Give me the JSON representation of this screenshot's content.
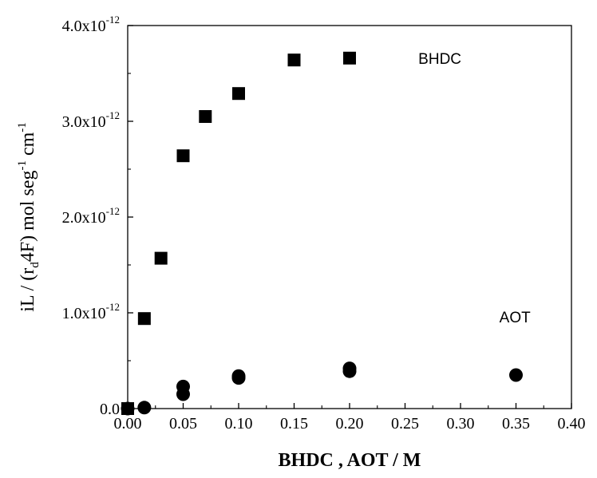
{
  "chart_data": {
    "type": "scatter",
    "title": "",
    "xlabel": "BHDC , AOT / M",
    "ylabel": {
      "prefix": "iL / (r",
      "sub1": "d",
      "middle": "4F)  mol seg",
      "sup1": "-1",
      "middle2": " cm",
      "sup2": "-1"
    },
    "xlim": [
      0.0,
      0.4
    ],
    "ylim": [
      0.0,
      4e-12
    ],
    "x_ticks": [
      0.0,
      0.05,
      0.1,
      0.15,
      0.2,
      0.25,
      0.3,
      0.35,
      0.4
    ],
    "x_tick_labels": [
      "0.00",
      "0.05",
      "0.10",
      "0.15",
      "0.20",
      "0.25",
      "0.30",
      "0.35",
      "0.40"
    ],
    "y_ticks": [
      0.0,
      1e-12,
      2e-12,
      3e-12,
      4e-12
    ],
    "y_tick_labels": [
      {
        "base": "0.0",
        "exp": ""
      },
      {
        "base": "1.0x10",
        "exp": "-12"
      },
      {
        "base": "2.0x10",
        "exp": "-12"
      },
      {
        "base": "3.0x10",
        "exp": "-12"
      },
      {
        "base": "4.0x10",
        "exp": "-12"
      }
    ],
    "grid": false,
    "series": [
      {
        "name": "BHDC",
        "marker": "square",
        "color": "#000000",
        "points": [
          {
            "x": 0.0,
            "y": 0.0
          },
          {
            "x": 0.015,
            "y": 9.4e-13
          },
          {
            "x": 0.03,
            "y": 1.57e-12
          },
          {
            "x": 0.05,
            "y": 2.64e-12
          },
          {
            "x": 0.07,
            "y": 3.05e-12
          },
          {
            "x": 0.1,
            "y": 3.29e-12
          },
          {
            "x": 0.15,
            "y": 3.64e-12
          },
          {
            "x": 0.2,
            "y": 3.66e-12
          }
        ]
      },
      {
        "name": "AOT",
        "marker": "circle",
        "color": "#000000",
        "points": [
          {
            "x": 0.0,
            "y": 0.0
          },
          {
            "x": 0.015,
            "y": 1e-14
          },
          {
            "x": 0.05,
            "y": 1.5e-13
          },
          {
            "x": 0.05,
            "y": 2.3e-13
          },
          {
            "x": 0.1,
            "y": 3.2e-13
          },
          {
            "x": 0.1,
            "y": 3.4e-13
          },
          {
            "x": 0.2,
            "y": 3.9e-13
          },
          {
            "x": 0.2,
            "y": 4.2e-13
          },
          {
            "x": 0.35,
            "y": 3.5e-13
          }
        ]
      }
    ],
    "annotations": [
      {
        "text": "BHDC",
        "x": 0.262,
        "y": 3.66e-12
      },
      {
        "text": "AOT",
        "x": 0.335,
        "y": 9.6e-13
      }
    ]
  }
}
